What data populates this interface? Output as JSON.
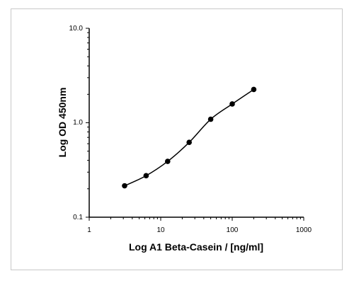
{
  "chart_data": {
    "type": "line",
    "xlabel": "Log A1 Beta-Casein / [ng/ml]",
    "ylabel": "Log OD 450nm",
    "x_scale": "log",
    "y_scale": "log",
    "xlim": [
      1,
      1000
    ],
    "ylim": [
      0.1,
      10.0
    ],
    "x_tick_labels": [
      "1",
      "10",
      "100",
      "1000"
    ],
    "y_tick_labels": [
      "0.1",
      "1.0",
      "10.0"
    ],
    "grid": false,
    "series": [
      {
        "x": [
          3.125,
          6.25,
          12.5,
          25,
          50,
          100,
          200
        ],
        "y": [
          0.215,
          0.275,
          0.39,
          0.62,
          1.09,
          1.58,
          2.25
        ]
      }
    ],
    "colors": {
      "line": "#000000",
      "marker": "#000000"
    }
  }
}
